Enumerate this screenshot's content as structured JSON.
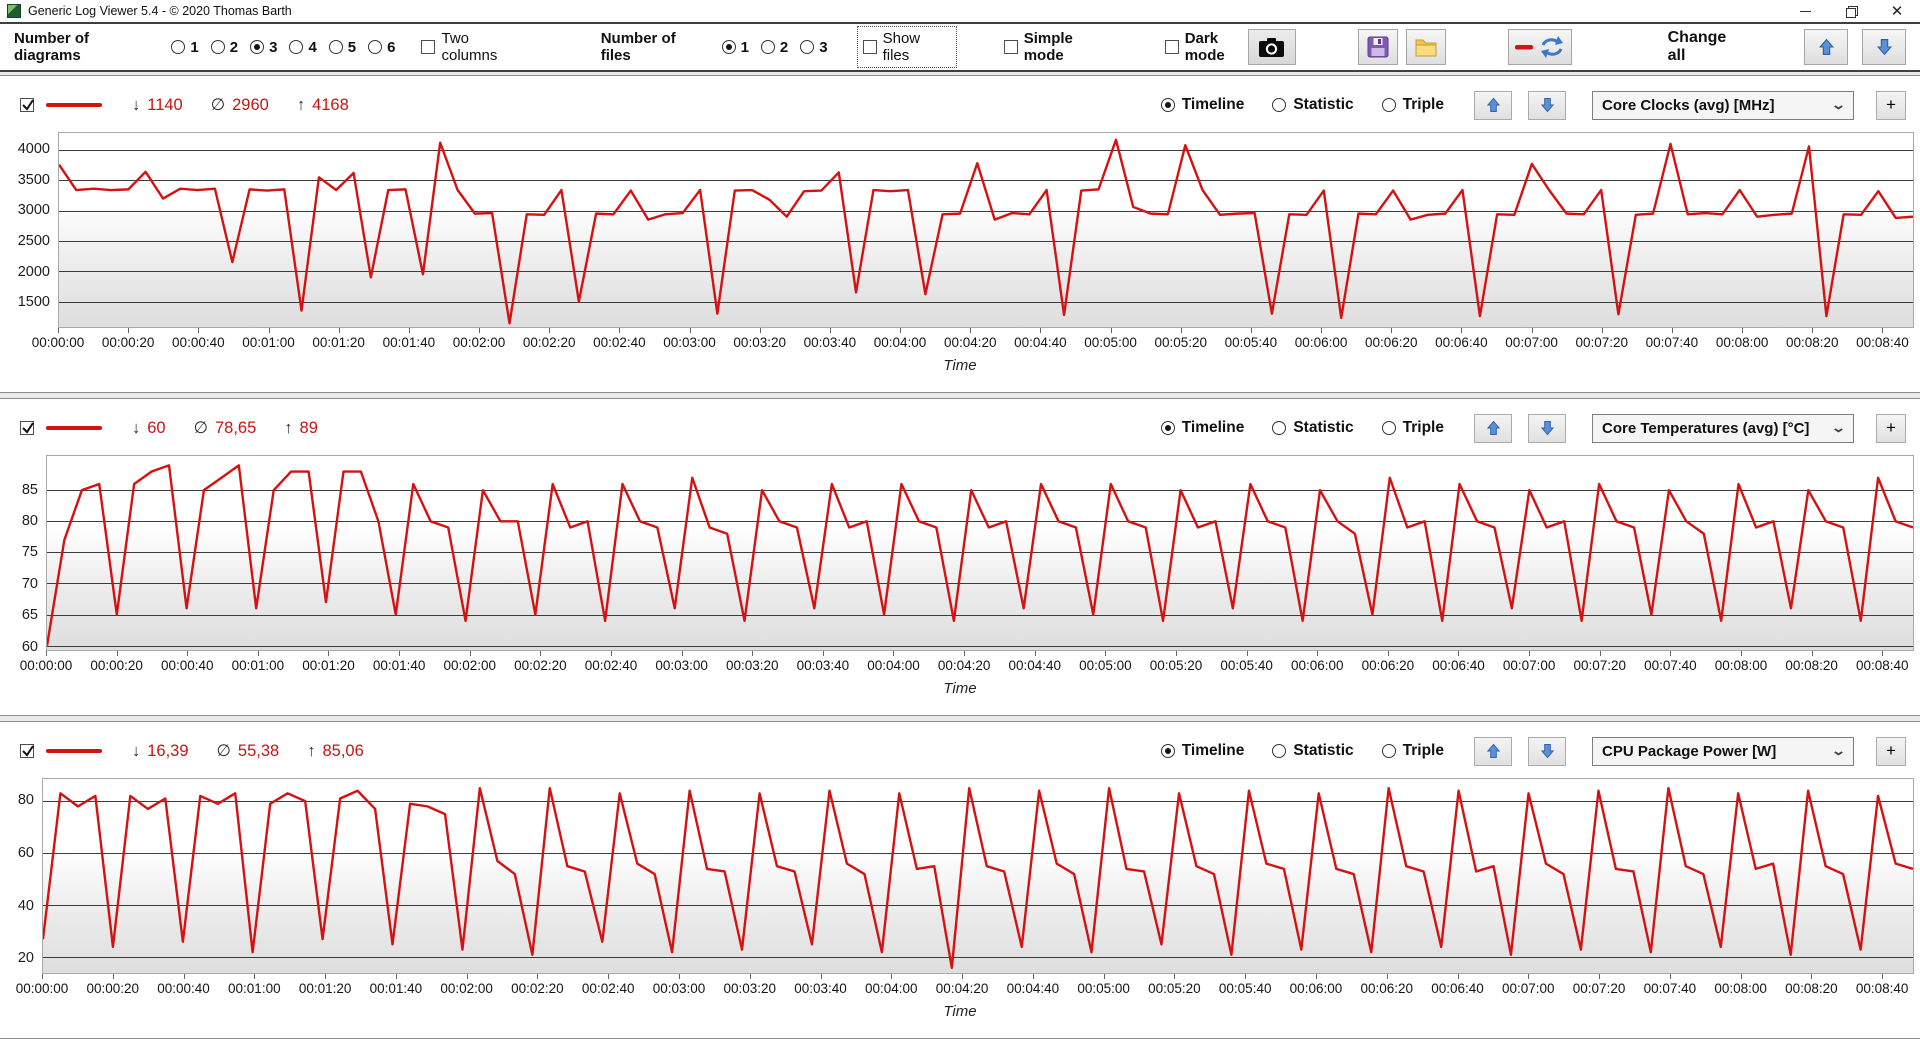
{
  "window": {
    "title": "Generic Log Viewer 5.4 - © 2020 Thomas Barth"
  },
  "toolbar": {
    "diagrams_label": "Number of diagrams",
    "diagrams_options": [
      "1",
      "2",
      "3",
      "4",
      "5",
      "6"
    ],
    "diagrams_selected": "3",
    "two_columns_label": "Two columns",
    "files_label": "Number of files",
    "files_options": [
      "1",
      "2",
      "3"
    ],
    "files_selected": "1",
    "show_files_label": "Show files",
    "simple_mode_label": "Simple mode",
    "dark_mode_label": "Dark mode",
    "change_all_label": "Change all"
  },
  "stats_symbols": {
    "min": "↓",
    "avg": "∅",
    "max": "↑"
  },
  "panel_controls": {
    "plus_label": "+"
  },
  "time_axis": {
    "label": "Time",
    "ticks": [
      "00:00:00",
      "00:00:20",
      "00:00:40",
      "00:01:00",
      "00:01:20",
      "00:01:40",
      "00:02:00",
      "00:02:20",
      "00:02:40",
      "00:03:00",
      "00:03:20",
      "00:03:40",
      "00:04:00",
      "00:04:20",
      "00:04:40",
      "00:05:00",
      "00:05:20",
      "00:05:40",
      "00:06:00",
      "00:06:20",
      "00:06:40",
      "00:07:00",
      "00:07:20",
      "00:07:40",
      "00:08:00",
      "00:08:20",
      "00:08:40"
    ]
  },
  "charts": [
    {
      "type": "line",
      "title": "Core Clocks (avg) [MHz]",
      "checked": true,
      "min": "1140",
      "avg": "2960",
      "max": "4168",
      "view_options": [
        "Timeline",
        "Statistic",
        "Triple"
      ],
      "view_selected": "Timeline",
      "line_color": "#d41212",
      "ylabel_width": 58,
      "yticks": [
        4000,
        3500,
        3000,
        2500,
        2000,
        1500
      ],
      "ymin": 1080,
      "ymax": 4280,
      "values": [
        3760,
        3340,
        3360,
        3340,
        3350,
        3640,
        3200,
        3360,
        3340,
        3360,
        2150,
        3350,
        3330,
        3350,
        1350,
        3550,
        3340,
        3620,
        1900,
        3340,
        3350,
        1950,
        4120,
        3340,
        2950,
        2960,
        1140,
        2940,
        2930,
        3340,
        1500,
        2950,
        2940,
        3330,
        2850,
        2940,
        2960,
        3340,
        1300,
        3330,
        3340,
        3180,
        2900,
        3320,
        3330,
        3630,
        1650,
        3340,
        3320,
        3340,
        1620,
        2940,
        2950,
        3780,
        2850,
        2960,
        2940,
        3340,
        1280,
        3330,
        3350,
        4168,
        3060,
        2950,
        2940,
        4080,
        3340,
        2930,
        2950,
        2960,
        1300,
        2940,
        2930,
        3330,
        1230,
        2950,
        2940,
        3330,
        2850,
        2930,
        2950,
        3340,
        1260,
        2940,
        2930,
        3770,
        3340,
        2950,
        2940,
        3340,
        1290,
        2930,
        2950,
        4100,
        2940,
        2960,
        2940,
        3340,
        2900,
        2930,
        2950,
        4060,
        1260,
        2940,
        2930,
        3320,
        2880,
        2900
      ]
    },
    {
      "type": "line",
      "title": "Core Temperatures (avg) [°C]",
      "checked": true,
      "min": "60",
      "avg": "78,65",
      "max": "89",
      "view_options": [
        "Timeline",
        "Statistic",
        "Triple"
      ],
      "view_selected": "Timeline",
      "line_color": "#d41212",
      "ylabel_width": 46,
      "yticks": [
        85,
        80,
        75,
        70,
        65,
        60
      ],
      "ymin": 59.3,
      "ymax": 90.5,
      "values": [
        60,
        77,
        85,
        86,
        65,
        86,
        88,
        89,
        66,
        85,
        87,
        89,
        66,
        85,
        88,
        88,
        67,
        88,
        88,
        80,
        65,
        86,
        80,
        79,
        64,
        85,
        80,
        80,
        65,
        86,
        79,
        80,
        64,
        86,
        80,
        79,
        66,
        87,
        79,
        78,
        64,
        85,
        80,
        79,
        66,
        86,
        79,
        80,
        65,
        86,
        80,
        79,
        64,
        85,
        79,
        80,
        66,
        86,
        80,
        79,
        65,
        86,
        80,
        79,
        64,
        85,
        79,
        80,
        66,
        86,
        80,
        79,
        64,
        85,
        80,
        78,
        65,
        87,
        79,
        80,
        64,
        86,
        80,
        79,
        66,
        85,
        79,
        80,
        64,
        86,
        80,
        79,
        65,
        85,
        80,
        78,
        64,
        86,
        79,
        80,
        66,
        85,
        80,
        79,
        64,
        87,
        80,
        79
      ]
    },
    {
      "type": "line",
      "title": "CPU Package Power [W]",
      "checked": true,
      "min": "16,39",
      "avg": "55,38",
      "max": "85,06",
      "view_options": [
        "Timeline",
        "Statistic",
        "Triple"
      ],
      "view_selected": "Timeline",
      "line_color": "#d41212",
      "ylabel_width": 42,
      "yticks": [
        80,
        60,
        40,
        20
      ],
      "ymin": 14,
      "ymax": 88.5,
      "values": [
        27,
        83,
        78,
        82,
        24,
        82,
        77,
        81,
        26,
        82,
        79,
        83,
        22,
        79,
        83,
        80,
        27,
        81,
        84,
        77,
        25,
        79,
        78,
        75,
        23,
        85,
        57,
        52,
        21,
        85,
        55,
        53,
        26,
        83,
        56,
        52,
        22,
        84,
        54,
        53,
        23,
        83,
        55,
        53,
        25,
        84,
        56,
        52,
        22,
        83,
        54,
        55,
        16,
        85,
        55,
        53,
        24,
        84,
        56,
        52,
        22,
        85,
        54,
        53,
        25,
        83,
        55,
        52,
        21,
        84,
        56,
        54,
        23,
        83,
        54,
        52,
        22,
        85,
        55,
        53,
        24,
        84,
        53,
        55,
        21,
        83,
        56,
        52,
        23,
        84,
        54,
        53,
        22,
        85,
        55,
        52,
        24,
        83,
        54,
        56,
        21,
        84,
        55,
        52,
        23,
        82,
        56,
        54
      ]
    }
  ]
}
